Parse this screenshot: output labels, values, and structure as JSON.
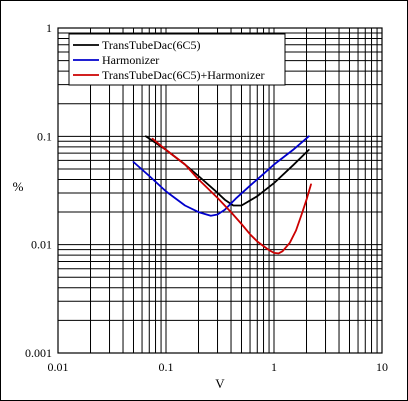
{
  "chart_data": {
    "type": "line",
    "xlabel": "V",
    "ylabel": "%",
    "xscale": "log",
    "yscale": "log",
    "xlim": [
      0.01,
      10
    ],
    "ylim": [
      0.001,
      1
    ],
    "x_tick_labels": [
      "0.01",
      "0.1",
      "1",
      "10"
    ],
    "y_tick_labels": [
      "0.001",
      "0.01",
      "0.1",
      "1"
    ],
    "grid": "major and minor",
    "legend_position": "top-left",
    "series": [
      {
        "name": "TransTubeDac(6C5)",
        "color": "#000000",
        "x": [
          0.065,
          0.1,
          0.15,
          0.2,
          0.28,
          0.35,
          0.42,
          0.5,
          0.7,
          1.0,
          1.5,
          2.1
        ],
        "y": [
          0.1,
          0.075,
          0.055,
          0.043,
          0.032,
          0.026,
          0.023,
          0.023,
          0.028,
          0.037,
          0.054,
          0.075
        ]
      },
      {
        "name": "Harmonizer",
        "color": "#0000cc",
        "x": [
          0.05,
          0.07,
          0.1,
          0.15,
          0.2,
          0.26,
          0.3,
          0.35,
          0.45,
          0.6,
          0.8,
          1.0,
          1.5,
          2.1
        ],
        "y": [
          0.058,
          0.043,
          0.031,
          0.023,
          0.02,
          0.0185,
          0.019,
          0.021,
          0.027,
          0.035,
          0.045,
          0.055,
          0.075,
          0.1
        ]
      },
      {
        "name": "TransTubeDac(6C5)+Harmonizer",
        "color": "#cc0000",
        "x": [
          0.075,
          0.1,
          0.15,
          0.2,
          0.3,
          0.4,
          0.5,
          0.6,
          0.7,
          0.8,
          0.9,
          1.0,
          1.1,
          1.2,
          1.4,
          1.6,
          1.8,
          2.0,
          2.2
        ],
        "y": [
          0.095,
          0.075,
          0.055,
          0.04,
          0.027,
          0.02,
          0.0155,
          0.0125,
          0.0107,
          0.0097,
          0.0089,
          0.0084,
          0.0083,
          0.0087,
          0.0104,
          0.0135,
          0.019,
          0.026,
          0.036
        ]
      }
    ]
  }
}
